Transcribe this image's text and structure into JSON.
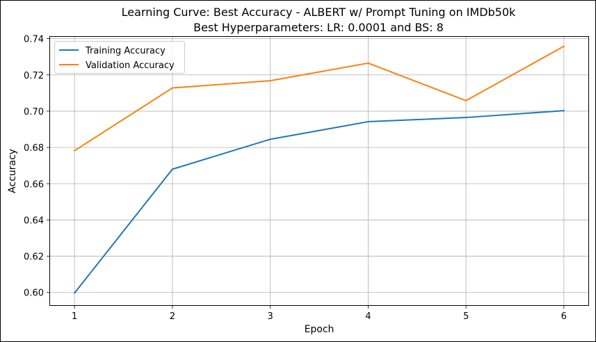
{
  "chart_data": {
    "type": "line",
    "title": [
      "Learning Curve: Best Accuracy - ALBERT w/ Prompt Tuning on IMDb50k",
      "Best Hyperparameters: LR: 0.0001 and BS: 8"
    ],
    "xlabel": "Epoch",
    "ylabel": "Accuracy",
    "x": [
      1,
      2,
      3,
      4,
      5,
      6
    ],
    "xticks": [
      "1",
      "2",
      "3",
      "4",
      "5",
      "6"
    ],
    "yticks": [
      "0.60",
      "0.62",
      "0.64",
      "0.66",
      "0.68",
      "0.70",
      "0.72",
      "0.74"
    ],
    "ylim": [
      0.593,
      0.741
    ],
    "xlim": [
      0.75,
      6.25
    ],
    "grid": true,
    "legend_position": "top-left",
    "series": [
      {
        "name": "Training Accuracy",
        "color": "#1f77b4",
        "values": [
          0.5997,
          0.668,
          0.6845,
          0.6942,
          0.6965,
          0.7003
        ]
      },
      {
        "name": "Validation Accuracy",
        "color": "#ff7f0e",
        "values": [
          0.6782,
          0.7128,
          0.7168,
          0.7265,
          0.7058,
          0.7358
        ]
      }
    ]
  }
}
